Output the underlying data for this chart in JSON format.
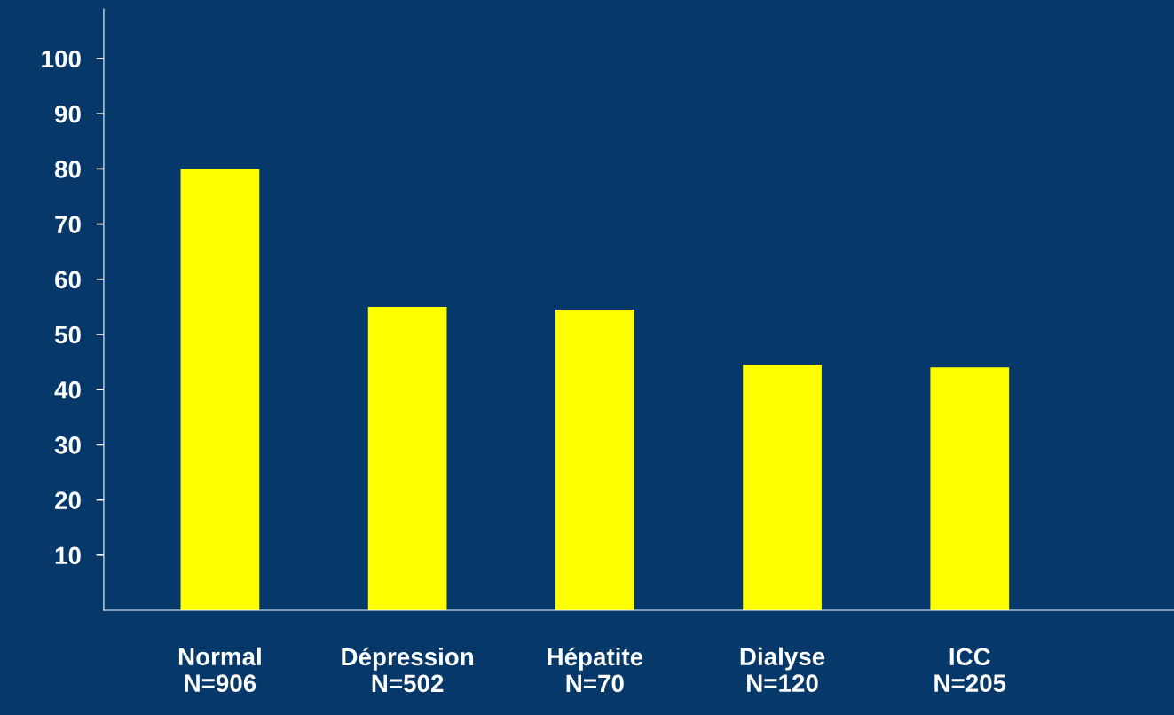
{
  "chart_data": {
    "type": "bar",
    "categories": [
      "Normal\nN=906",
      "Dépression\nN=502",
      "Hépatite\nN=70",
      "Dialyse\nN=120",
      "ICC\nN=205"
    ],
    "values": [
      80,
      55,
      54.5,
      44.5,
      44
    ],
    "color": "#ffff00",
    "ylim": [
      0,
      109
    ],
    "yticks": [
      10,
      20,
      30,
      40,
      50,
      60,
      70,
      80,
      90,
      100
    ],
    "grid": false,
    "legend": false
  }
}
